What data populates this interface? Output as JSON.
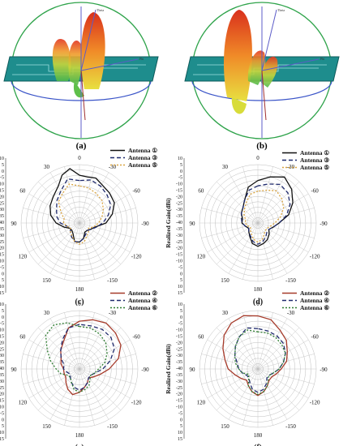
{
  "top_panels": [
    {
      "label": "(a)",
      "axis_labels": {
        "x": "Phi",
        "y": "Theta"
      }
    },
    {
      "label": "(b)",
      "axis_labels": {
        "x": "Phi",
        "y": "Theta"
      }
    }
  ],
  "colors": {
    "antenna_dark": "#111111",
    "antenna_navy": "#1f2a6d",
    "antenna_gold": "#d9a441",
    "antenna_red": "#a63a2a",
    "antenna_green": "#2f7d31",
    "grid": "#bdbdbd",
    "board": "#1e8d8d",
    "sphere_green": "#2ea34a",
    "sphere_blue": "#3a54c8"
  },
  "chart_data": [
    {
      "type": "polar",
      "panel": "(c)",
      "ylabel": "Realized Gain(dBi)",
      "radial_ticks": [
        "10",
        "5",
        "0",
        "-5",
        "-10",
        "-15",
        "-20",
        "-25",
        "-30",
        "-35",
        "-40",
        "-35",
        "-30",
        "-25",
        "-20",
        "-15",
        "-10",
        "-5",
        "0",
        "5",
        "10",
        "15"
      ],
      "angular_ticks": [
        "0",
        "-30",
        "-60",
        "-90",
        "-120",
        "-150",
        "180",
        "150",
        "120",
        "90",
        "60",
        "30"
      ],
      "rlim": [
        -40,
        15
      ],
      "series": [
        {
          "name": "Antenna ①",
          "style": "solid",
          "color": "#111111",
          "angles": [
            0,
            10,
            20,
            30,
            45,
            60,
            75,
            90,
            105,
            120,
            135,
            150,
            165,
            180,
            195,
            210,
            225,
            240,
            255,
            270,
            285,
            300,
            315,
            330,
            340,
            350
          ],
          "values": [
            5,
            12,
            8,
            0,
            -5,
            -8,
            -12,
            -18,
            -25,
            -30,
            -30,
            -28,
            -22,
            -22,
            -25,
            -30,
            -30,
            -28,
            -25,
            -15,
            -8,
            -2,
            0,
            2,
            5,
            4
          ]
        },
        {
          "name": "Antenna ③",
          "style": "dashed",
          "color": "#1f2a6d",
          "angles": [
            0,
            15,
            30,
            45,
            60,
            75,
            90,
            105,
            120,
            135,
            150,
            165,
            180,
            195,
            210,
            225,
            240,
            255,
            270,
            285,
            300,
            315,
            330,
            345
          ],
          "values": [
            0,
            3,
            -5,
            -10,
            -15,
            -18,
            -22,
            -28,
            -30,
            -28,
            -25,
            -22,
            -22,
            -25,
            -28,
            -30,
            -28,
            -24,
            -18,
            -12,
            -6,
            -3,
            0,
            2
          ]
        },
        {
          "name": "Antenna ⑤",
          "style": "dotted",
          "color": "#d9a441",
          "angles": [
            0,
            15,
            30,
            45,
            60,
            75,
            90,
            105,
            120,
            135,
            150,
            165,
            180,
            195,
            210,
            225,
            240,
            255,
            270,
            285,
            300,
            315,
            330,
            345
          ],
          "values": [
            -5,
            -2,
            -8,
            -12,
            -20,
            -25,
            -25,
            -28,
            -30,
            -28,
            -26,
            -22,
            -20,
            -22,
            -26,
            -28,
            -30,
            -26,
            -22,
            -18,
            -14,
            -10,
            -8,
            -6
          ]
        }
      ]
    },
    {
      "type": "polar",
      "panel": "(d)",
      "ylabel": "Realized Gain(dBi)",
      "radial_ticks": [
        "10",
        "5",
        "0",
        "-5",
        "-10",
        "-15",
        "-20",
        "-25",
        "-30",
        "-35",
        "-40",
        "-35",
        "-30",
        "-25",
        "-20",
        "-15",
        "-10",
        "-5",
        "0",
        "5",
        "10",
        "15"
      ],
      "angular_ticks": [
        "0",
        "-30",
        "-60",
        "-90",
        "-120",
        "-150",
        "180",
        "150",
        "120",
        "90",
        "60",
        "30"
      ],
      "rlim": [
        -40,
        15
      ],
      "series": [
        {
          "name": "Antenna ①",
          "style": "solid",
          "color": "#111111",
          "angles": [
            0,
            15,
            30,
            45,
            60,
            75,
            90,
            105,
            120,
            135,
            150,
            165,
            180,
            195,
            210,
            225,
            240,
            255,
            270,
            285,
            300,
            315,
            330,
            345
          ],
          "values": [
            0,
            -5,
            -15,
            -20,
            -22,
            -25,
            -25,
            -28,
            -30,
            -28,
            -25,
            -20,
            -18,
            -20,
            -22,
            -25,
            -28,
            -25,
            -20,
            -10,
            -2,
            5,
            10,
            5
          ]
        },
        {
          "name": "Antenna ③",
          "style": "dashed",
          "color": "#1f2a6d",
          "angles": [
            0,
            15,
            30,
            45,
            60,
            75,
            90,
            105,
            120,
            135,
            150,
            165,
            180,
            195,
            210,
            225,
            240,
            255,
            270,
            285,
            300,
            315,
            330,
            345
          ],
          "values": [
            -5,
            -8,
            -15,
            -20,
            -22,
            -24,
            -25,
            -28,
            -30,
            -28,
            -26,
            -22,
            -20,
            -22,
            -25,
            -28,
            -28,
            -25,
            -20,
            -12,
            -5,
            0,
            2,
            -2
          ]
        },
        {
          "name": "Antenna ⑤",
          "style": "dotted",
          "color": "#d9a441",
          "angles": [
            0,
            15,
            30,
            45,
            60,
            75,
            90,
            105,
            120,
            135,
            150,
            165,
            180,
            195,
            210,
            225,
            240,
            255,
            270,
            285,
            300,
            315,
            330,
            345
          ],
          "values": [
            -10,
            -12,
            -18,
            -22,
            -25,
            -28,
            -28,
            -30,
            -32,
            -30,
            -28,
            -24,
            -22,
            -24,
            -28,
            -30,
            -30,
            -28,
            -24,
            -18,
            -12,
            -8,
            -5,
            -8
          ]
        }
      ]
    },
    {
      "type": "polar",
      "panel": "(e)",
      "ylabel": "Realized Gain(dBi)",
      "radial_ticks": [
        "10",
        "5",
        "0",
        "-5",
        "-10",
        "-15",
        "-20",
        "-25",
        "-30",
        "-35",
        "-40",
        "-35",
        "-30",
        "-25",
        "-20",
        "-15",
        "-10",
        "-5",
        "0",
        "5",
        "10",
        "15"
      ],
      "angular_ticks": [
        "0",
        "-30",
        "-60",
        "-90",
        "-120",
        "-150",
        "180",
        "150",
        "120",
        "90",
        "60",
        "30"
      ],
      "rlim": [
        -40,
        15
      ],
      "series": [
        {
          "name": "Antenna ②",
          "style": "solid",
          "color": "#a63a2a",
          "angles": [
            0,
            15,
            30,
            45,
            60,
            75,
            90,
            105,
            120,
            135,
            150,
            165,
            180,
            195,
            210,
            225,
            240,
            255,
            270,
            285,
            300,
            315,
            330,
            345
          ],
          "values": [
            5,
            0,
            -10,
            -15,
            -20,
            -22,
            -25,
            -25,
            -25,
            -22,
            -18,
            -15,
            -18,
            -22,
            -25,
            -28,
            -25,
            -20,
            -12,
            -2,
            5,
            8,
            10,
            8
          ]
        },
        {
          "name": "Antenna ④",
          "style": "dashed",
          "color": "#1f2a6d",
          "angles": [
            0,
            15,
            30,
            45,
            60,
            75,
            90,
            105,
            120,
            135,
            150,
            165,
            180,
            195,
            210,
            225,
            240,
            255,
            270,
            285,
            300,
            315,
            330,
            345
          ],
          "values": [
            2,
            0,
            -8,
            -15,
            -20,
            -25,
            -25,
            -28,
            -30,
            -28,
            -25,
            -22,
            -20,
            -22,
            -25,
            -28,
            -28,
            -25,
            -18,
            -10,
            -2,
            2,
            3,
            2
          ]
        },
        {
          "name": "Antenna ⑥",
          "style": "dotted",
          "color": "#2f7d31",
          "angles": [
            0,
            15,
            30,
            45,
            60,
            75,
            90,
            105,
            120,
            135,
            150,
            165,
            180,
            195,
            210,
            225,
            240,
            255,
            270,
            285,
            300,
            315,
            330,
            345
          ],
          "values": [
            0,
            5,
            8,
            5,
            -5,
            -12,
            -18,
            -22,
            -28,
            -28,
            -25,
            -20,
            -18,
            -20,
            -22,
            -26,
            -28,
            -25,
            -22,
            -15,
            -10,
            -5,
            -2,
            0
          ]
        }
      ]
    },
    {
      "type": "polar",
      "panel": "(f)",
      "ylabel": "Realized Gain(dBi)",
      "radial_ticks": [
        "10",
        "5",
        "0",
        "-5",
        "-10",
        "-15",
        "-20",
        "-25",
        "-30",
        "-35",
        "-40",
        "-35",
        "-30",
        "-25",
        "-20",
        "-15",
        "-10",
        "-5",
        "0",
        "5",
        "10",
        "15"
      ],
      "angular_ticks": [
        "0",
        "-30",
        "-60",
        "-90",
        "-120",
        "-150",
        "180",
        "150",
        "120",
        "90",
        "60",
        "30"
      ],
      "rlim": [
        -40,
        15
      ],
      "series": [
        {
          "name": "Antenna ②",
          "style": "solid",
          "color": "#a63a2a",
          "angles": [
            0,
            15,
            30,
            45,
            60,
            75,
            90,
            105,
            120,
            135,
            150,
            165,
            180,
            195,
            210,
            225,
            240,
            255,
            270,
            285,
            300,
            315,
            330,
            345
          ],
          "values": [
            10,
            12,
            10,
            5,
            -2,
            -8,
            -12,
            -18,
            -22,
            -25,
            -22,
            -18,
            -15,
            -18,
            -22,
            -25,
            -25,
            -22,
            -18,
            -12,
            -8,
            -2,
            2,
            8
          ]
        },
        {
          "name": "Antenna ④",
          "style": "dashed",
          "color": "#1f2a6d",
          "angles": [
            0,
            15,
            30,
            45,
            60,
            75,
            90,
            105,
            120,
            135,
            150,
            165,
            180,
            195,
            210,
            225,
            240,
            255,
            270,
            285,
            300,
            315,
            330,
            345
          ],
          "values": [
            -2,
            0,
            -5,
            -10,
            -15,
            -20,
            -22,
            -25,
            -28,
            -28,
            -25,
            -20,
            -18,
            -20,
            -24,
            -28,
            -28,
            -25,
            -20,
            -15,
            -10,
            -6,
            -4,
            -3
          ]
        },
        {
          "name": "Antenna ⑥",
          "style": "dotted",
          "color": "#2f7d31",
          "angles": [
            0,
            15,
            30,
            45,
            60,
            75,
            90,
            105,
            120,
            135,
            150,
            165,
            180,
            195,
            210,
            225,
            240,
            255,
            270,
            285,
            300,
            315,
            330,
            345
          ],
          "values": [
            -5,
            -2,
            -5,
            -10,
            -15,
            -18,
            -22,
            -25,
            -30,
            -28,
            -22,
            -18,
            -16,
            -18,
            -22,
            -26,
            -28,
            -25,
            -20,
            -15,
            -10,
            -8,
            -6,
            -5
          ]
        }
      ]
    }
  ]
}
